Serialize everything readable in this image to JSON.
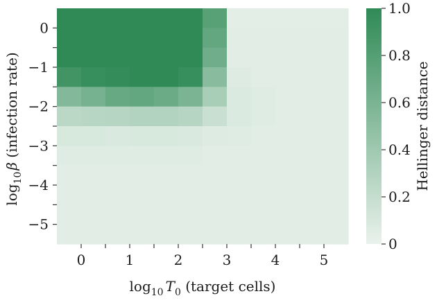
{
  "chart_data": {
    "type": "heatmap",
    "xlabel": {
      "base": "log",
      "sub": "10",
      "var": "T",
      "var_sub": "0",
      "rest": " (target cells)"
    },
    "ylabel": {
      "base": "log",
      "sub": "10",
      "var": "β",
      "rest": " (infection rate)"
    },
    "x_range": [
      -0.5,
      5.5
    ],
    "y_range": [
      -5.5,
      0.5
    ],
    "x_ticks": [
      0,
      1,
      2,
      3,
      4,
      5
    ],
    "x_tick_labels": [
      "0",
      "1",
      "2",
      "3",
      "4",
      "5"
    ],
    "y_ticks": [
      0,
      -1,
      -2,
      -3,
      -4,
      -5
    ],
    "y_tick_labels": [
      "0",
      "−1",
      "−2",
      "−3",
      "−4",
      "−5"
    ],
    "colorbar": {
      "label": "Hellinger distance",
      "min": 0,
      "max": 1,
      "ticks": [
        0,
        0.2,
        0.4,
        0.6,
        0.8,
        1.0
      ],
      "tick_labels": [
        "0",
        "0.2",
        "0.4",
        "0.6",
        "0.8",
        "1.0"
      ],
      "color_low": "#eaf2ec",
      "color_high": "#2f8a56"
    },
    "grid_x_start": -0.5,
    "grid_x_step": 0.5,
    "grid_y_start": 0.5,
    "grid_y_step": -0.5,
    "values": [
      [
        1.0,
        1.0,
        1.0,
        1.0,
        1.0,
        1.0,
        0.78,
        0.04,
        0.04,
        0.04,
        0.04,
        0.04
      ],
      [
        1.0,
        1.0,
        1.0,
        1.0,
        1.0,
        1.0,
        0.72,
        0.05,
        0.05,
        0.05,
        0.05,
        0.05
      ],
      [
        1.0,
        1.0,
        1.0,
        1.0,
        1.0,
        1.0,
        0.65,
        0.05,
        0.05,
        0.05,
        0.05,
        0.05
      ],
      [
        0.9,
        0.95,
        0.98,
        1.0,
        1.0,
        0.95,
        0.52,
        0.07,
        0.05,
        0.05,
        0.05,
        0.05
      ],
      [
        0.55,
        0.62,
        0.7,
        0.72,
        0.68,
        0.6,
        0.35,
        0.08,
        0.06,
        0.05,
        0.05,
        0.05
      ],
      [
        0.25,
        0.27,
        0.28,
        0.3,
        0.3,
        0.28,
        0.18,
        0.08,
        0.06,
        0.05,
        0.05,
        0.05
      ],
      [
        0.1,
        0.1,
        0.09,
        0.1,
        0.1,
        0.09,
        0.07,
        0.06,
        0.05,
        0.05,
        0.05,
        0.05
      ],
      [
        0.06,
        0.06,
        0.06,
        0.06,
        0.06,
        0.06,
        0.05,
        0.05,
        0.05,
        0.05,
        0.05,
        0.05
      ],
      [
        0.05,
        0.05,
        0.05,
        0.05,
        0.05,
        0.05,
        0.05,
        0.05,
        0.05,
        0.05,
        0.05,
        0.05
      ],
      [
        0.05,
        0.05,
        0.05,
        0.05,
        0.05,
        0.05,
        0.05,
        0.05,
        0.05,
        0.05,
        0.05,
        0.05
      ],
      [
        0.05,
        0.05,
        0.05,
        0.05,
        0.05,
        0.05,
        0.05,
        0.05,
        0.05,
        0.05,
        0.05,
        0.05
      ],
      [
        0.05,
        0.05,
        0.05,
        0.05,
        0.05,
        0.05,
        0.05,
        0.05,
        0.05,
        0.05,
        0.05,
        0.05
      ]
    ]
  }
}
